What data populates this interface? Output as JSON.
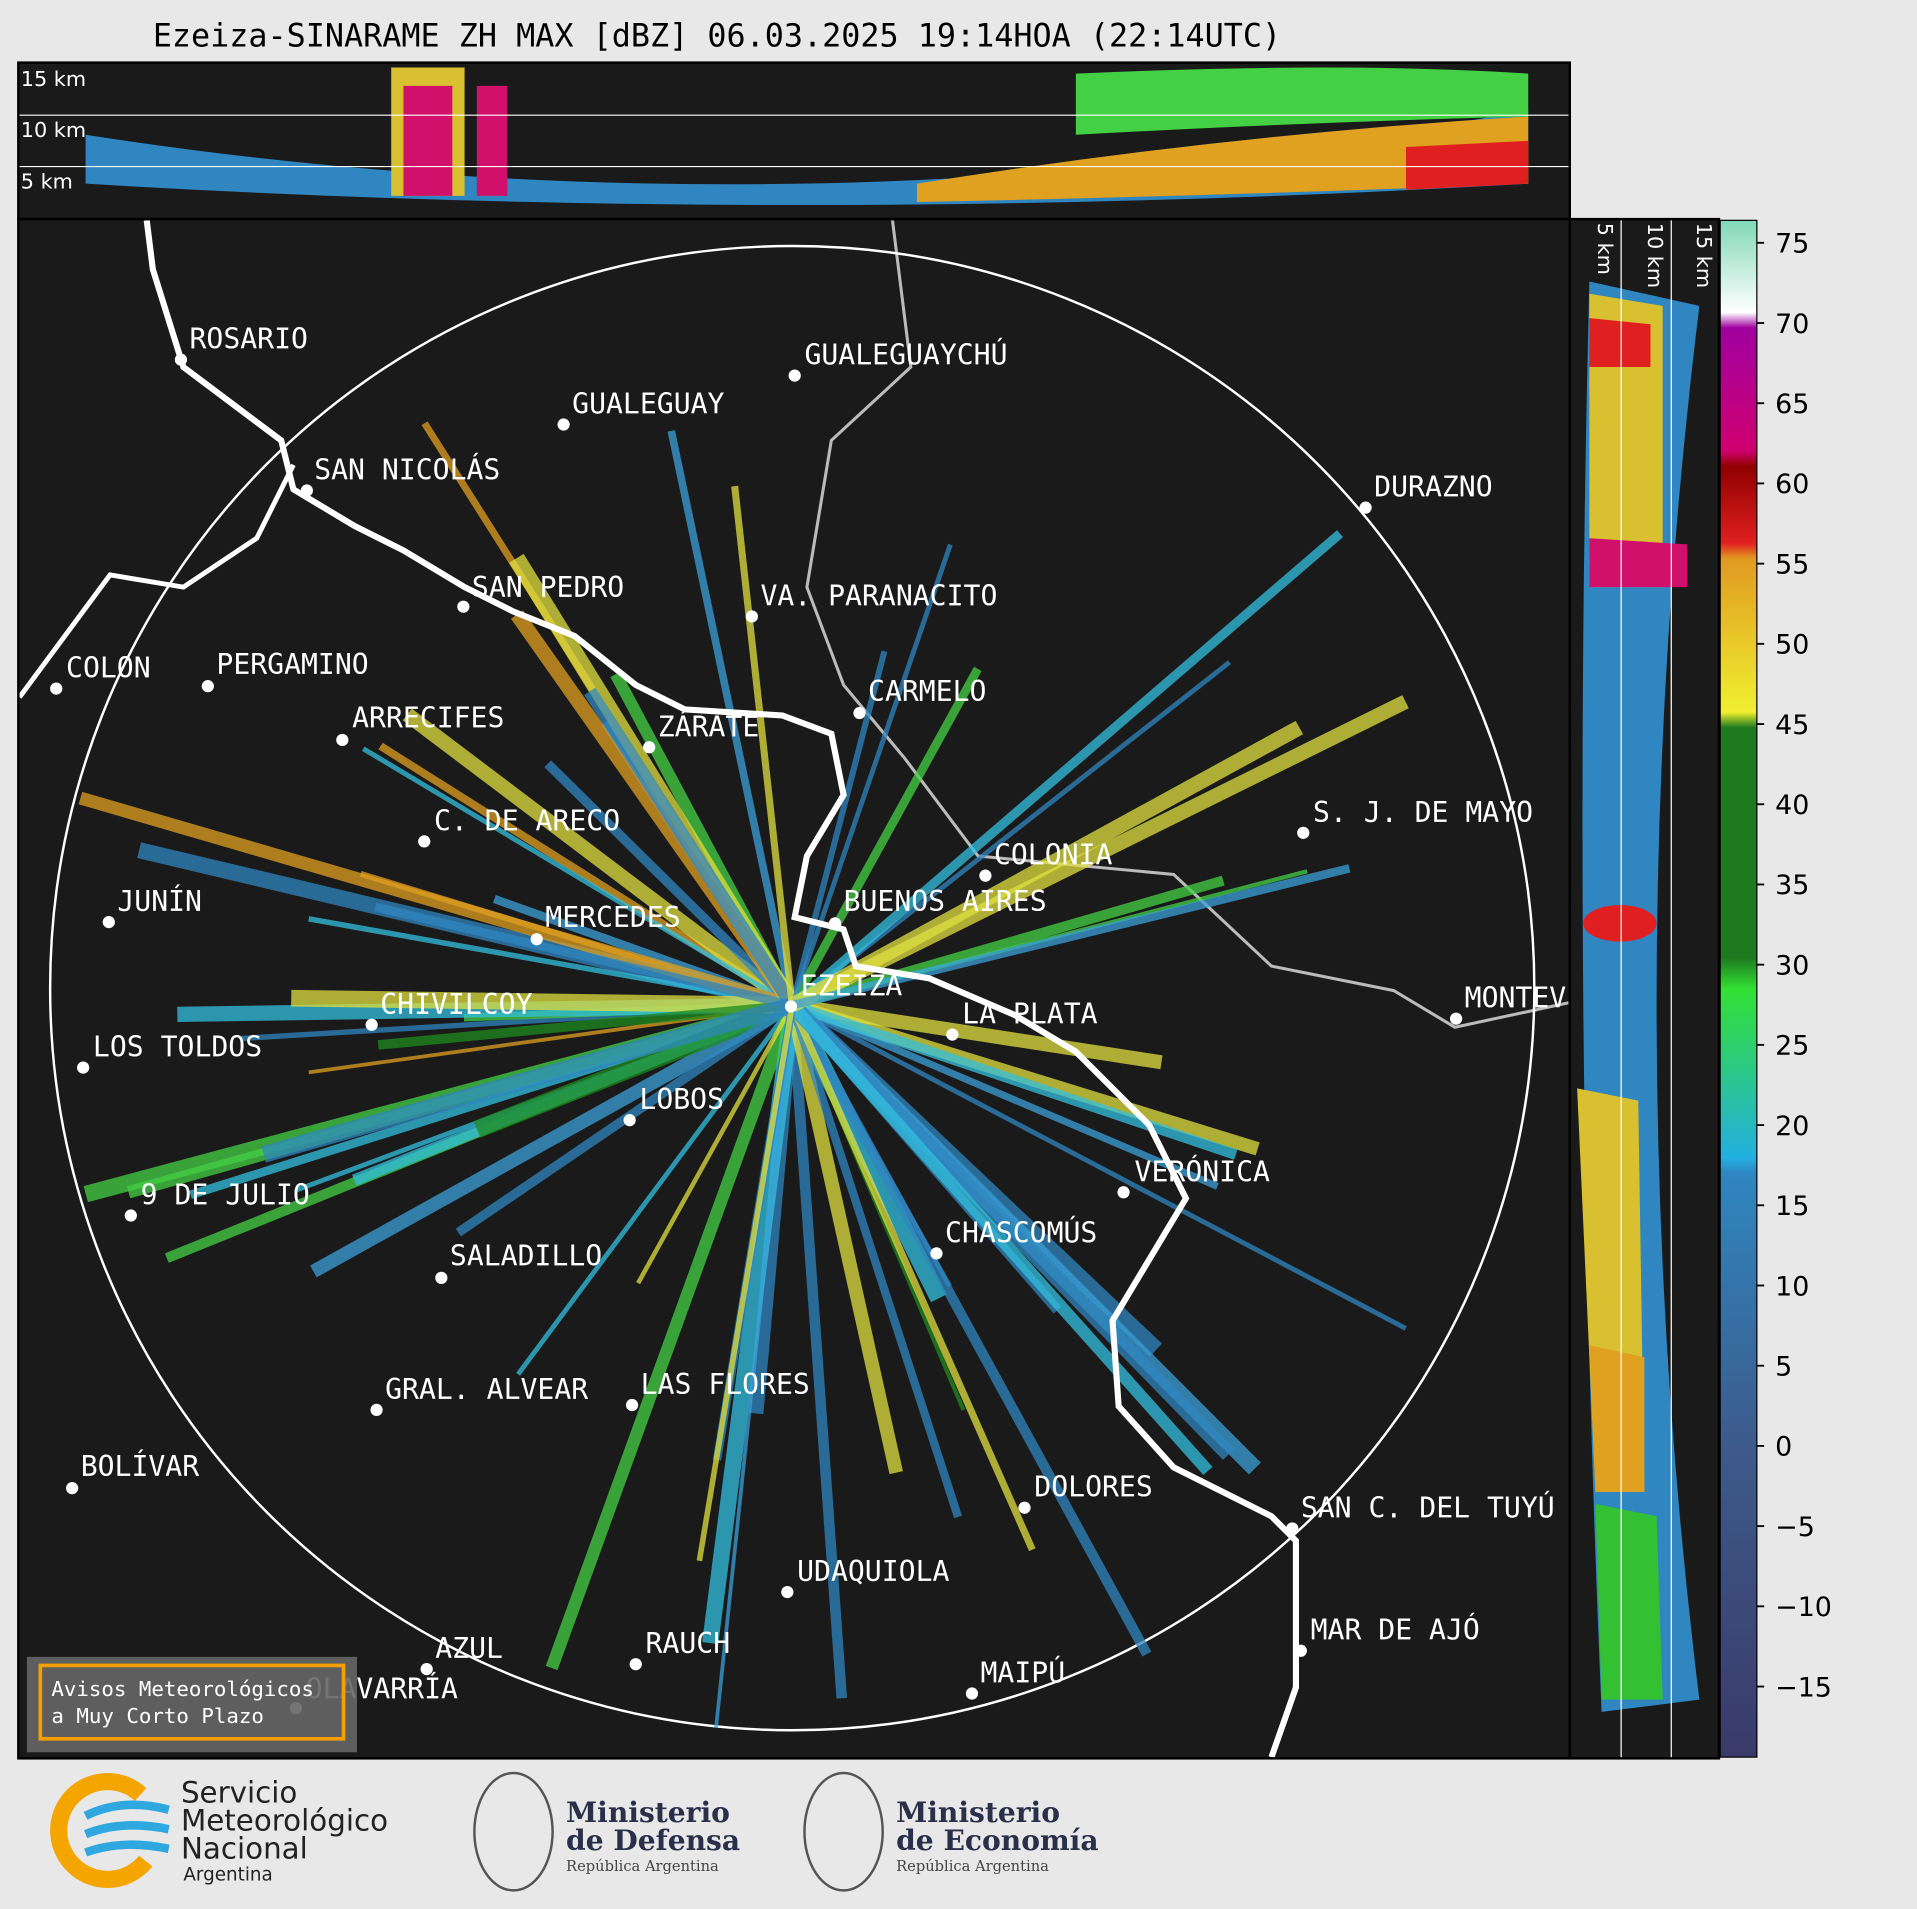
{
  "title": "Ezeiza-SINARAME ZH MAX [dBZ] 06.03.2025 19:14HOA (22:14UTC)",
  "height_labels": {
    "top": [
      "15 km",
      "10 km",
      "5 km"
    ],
    "side": [
      "5 km",
      "10 km",
      "15 km"
    ]
  },
  "cities": [
    "ROSARIO",
    "GUALEGUAYCHÚ",
    "GUALEGUAY",
    "SAN NICOLÁS",
    "DURAZNO",
    "SAN PEDRO",
    "VA. PARANACITO",
    "COLON",
    "PERGAMINO",
    "CARMELO",
    "ARRECIFES",
    "ZÁRATE",
    "S. J. DE MAYO",
    "C. DE ARECO",
    "COLONIA",
    "BUENOS AIRES",
    "JUNÍN",
    "MERCEDES",
    "EZEIZA",
    "MONTEV",
    "CHIVILCOY",
    "LA PLATA",
    "LOS TOLDOS",
    "LOBOS",
    "VERÓNICA",
    "9 DE JULIO",
    "CHASCOMÚS",
    "SALADILLO",
    "GRAL. ALVEAR",
    "LAS FLORES",
    "BOLÍVAR",
    "DOLORES",
    "SAN C. DEL TUYÚ",
    "UDAQUIOLA",
    "RAUCH",
    "MAR DE AJÓ",
    "AZUL",
    "OLAVARRÍA",
    "MAIPÚ"
  ],
  "colorbar": {
    "lim": [
      -19.4,
      76.4
    ],
    "ticks": [
      75,
      70,
      65,
      60,
      55,
      50,
      45,
      40,
      35,
      30,
      25,
      20,
      15,
      10,
      5,
      0,
      {
        "value": -5,
        "label": "−5"
      },
      {
        "value": -10,
        "label": "−10"
      },
      {
        "value": -15,
        "label": "−15"
      }
    ]
  },
  "notice": [
    "Avisos Meteorológicos",
    "a Muy Corto Plazo"
  ],
  "logos": [
    {
      "lines": [
        "Servicio",
        "Meteorológico",
        "Nacional",
        "Argentina"
      ]
    },
    {
      "lines": [
        "Ministerio",
        "de Defensa",
        "República Argentina"
      ]
    },
    {
      "lines": [
        "Ministerio",
        "de Economía",
        "República Argentina"
      ]
    }
  ]
}
